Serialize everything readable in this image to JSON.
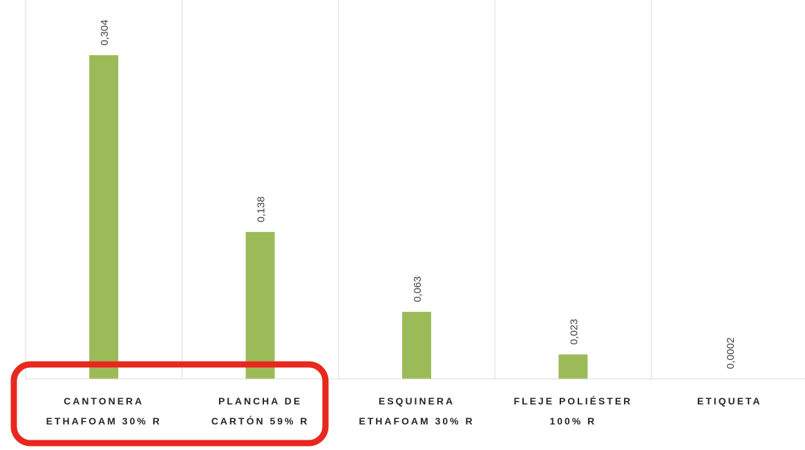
{
  "chart_data": {
    "type": "bar",
    "categories": [
      [
        "CANTONERA",
        "ETHAFOAM 30% R"
      ],
      [
        "PLANCHA DE",
        "CARTÓN 59% R"
      ],
      [
        "ESQUINERA",
        "ETHAFOAM 30% R"
      ],
      [
        "FLEJE POLIÉSTER",
        "100% R"
      ],
      [
        "ETIQUETA"
      ]
    ],
    "values": [
      0.304,
      0.138,
      0.063,
      0.023,
      0.0002
    ],
    "value_labels": [
      "0,304",
      "0,138",
      "0,063",
      "0,023",
      "0,0002"
    ],
    "color": "#9bbb59",
    "ylim": [
      0,
      0.35
    ],
    "grid": true
  }
}
